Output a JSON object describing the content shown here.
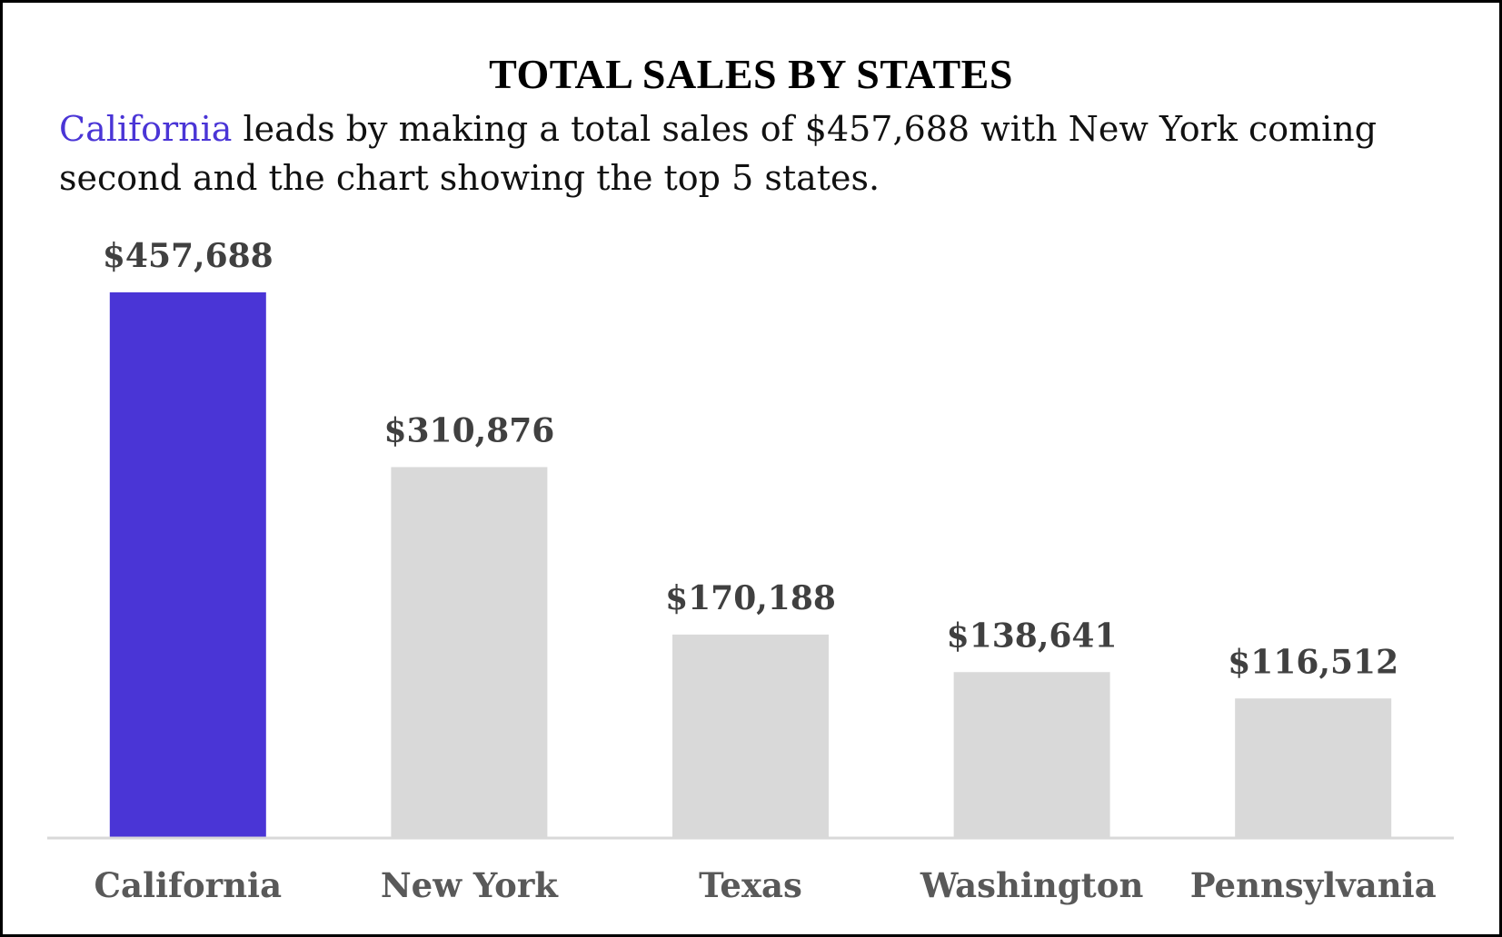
{
  "chart_data": {
    "type": "bar",
    "title": "TOTAL SALES BY STATES",
    "subtitle": {
      "highlight": "California",
      "rest": " leads by making a total sales of $457,688 with New York coming second and the chart showing the top 5 states."
    },
    "categories": [
      "California",
      "New York",
      "Texas",
      "Washington",
      "Pennsylvania"
    ],
    "values": [
      457688,
      310876,
      170188,
      138641,
      116512
    ],
    "data_labels": [
      "$457,688",
      "$310,876",
      "$170,188",
      "$138,641",
      "$116,512"
    ],
    "highlight_index": 0,
    "colors": {
      "highlight": "#4A35D6",
      "default": "#D9D9D9",
      "axis": "#D9D9D9"
    },
    "xlabel": "",
    "ylabel": "",
    "ylim": [
      0,
      457688
    ],
    "grid": false,
    "legend": "none"
  }
}
